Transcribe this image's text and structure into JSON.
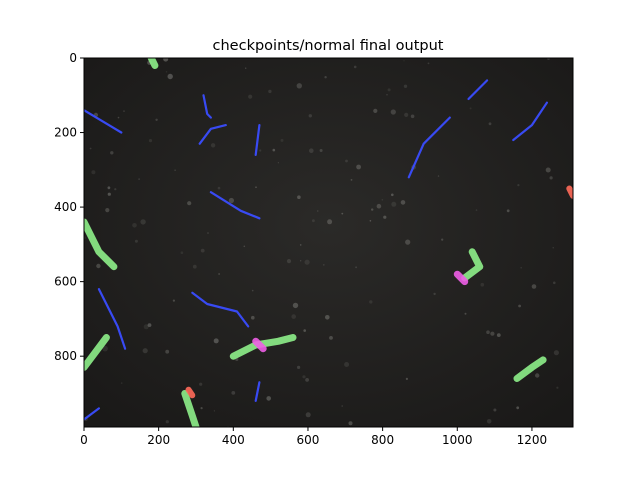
{
  "figure": {
    "title": "checkpoints/normal final output"
  },
  "chart_data": {
    "type": "image",
    "title": "checkpoints/normal final output",
    "xlabel": "",
    "ylabel": "",
    "xlim": [
      0,
      1310
    ],
    "ylim": [
      990,
      0
    ],
    "x_ticks": [
      0,
      200,
      400,
      600,
      800,
      1000,
      1200
    ],
    "y_ticks": [
      0,
      200,
      400,
      600,
      800
    ],
    "grid": false,
    "image_content": "dark microscopy field with worm-like specimens; detections highlighted in blue, green, magenta and red",
    "overlay_colors": {
      "blue": "#3a4dff",
      "green": "#8ef08a",
      "magenta": "#ee5ee6",
      "red": "#ff6a5a"
    },
    "detections": [
      {
        "class": "green",
        "points": [
          [
            180,
            0
          ],
          [
            190,
            20
          ]
        ]
      },
      {
        "class": "green",
        "points": [
          [
            0,
            440
          ],
          [
            40,
            520
          ],
          [
            80,
            560
          ]
        ]
      },
      {
        "class": "green",
        "points": [
          [
            0,
            830
          ],
          [
            30,
            790
          ],
          [
            60,
            750
          ]
        ]
      },
      {
        "class": "green",
        "points": [
          [
            270,
            900
          ],
          [
            290,
            960
          ],
          [
            300,
            990
          ]
        ]
      },
      {
        "class": "green",
        "points": [
          [
            400,
            800
          ],
          [
            460,
            770
          ],
          [
            520,
            760
          ],
          [
            560,
            750
          ]
        ]
      },
      {
        "class": "green",
        "points": [
          [
            1040,
            520
          ],
          [
            1060,
            560
          ],
          [
            1020,
            590
          ]
        ]
      },
      {
        "class": "green",
        "points": [
          [
            1160,
            860
          ],
          [
            1200,
            830
          ],
          [
            1230,
            810
          ]
        ]
      },
      {
        "class": "magenta",
        "points": [
          [
            460,
            760
          ],
          [
            480,
            780
          ]
        ]
      },
      {
        "class": "magenta",
        "points": [
          [
            1000,
            580
          ],
          [
            1020,
            600
          ]
        ]
      },
      {
        "class": "red",
        "points": [
          [
            1300,
            350
          ],
          [
            1310,
            370
          ]
        ]
      },
      {
        "class": "red",
        "points": [
          [
            280,
            890
          ],
          [
            290,
            905
          ]
        ]
      },
      {
        "class": "blue",
        "points": [
          [
            0,
            140
          ],
          [
            100,
            200
          ]
        ]
      },
      {
        "class": "blue",
        "points": [
          [
            320,
            100
          ],
          [
            330,
            150
          ],
          [
            340,
            160
          ]
        ]
      },
      {
        "class": "blue",
        "points": [
          [
            310,
            230
          ],
          [
            340,
            190
          ],
          [
            380,
            180
          ]
        ]
      },
      {
        "class": "blue",
        "points": [
          [
            470,
            180
          ],
          [
            460,
            260
          ]
        ]
      },
      {
        "class": "blue",
        "points": [
          [
            340,
            360
          ],
          [
            420,
            410
          ],
          [
            470,
            430
          ]
        ]
      },
      {
        "class": "blue",
        "points": [
          [
            870,
            320
          ],
          [
            910,
            230
          ],
          [
            980,
            160
          ]
        ]
      },
      {
        "class": "blue",
        "points": [
          [
            1030,
            110
          ],
          [
            1080,
            60
          ]
        ]
      },
      {
        "class": "blue",
        "points": [
          [
            1150,
            220
          ],
          [
            1200,
            180
          ],
          [
            1240,
            120
          ]
        ]
      },
      {
        "class": "blue",
        "points": [
          [
            40,
            620
          ],
          [
            90,
            720
          ],
          [
            110,
            780
          ]
        ]
      },
      {
        "class": "blue",
        "points": [
          [
            290,
            630
          ],
          [
            330,
            660
          ],
          [
            410,
            680
          ],
          [
            440,
            720
          ]
        ]
      },
      {
        "class": "blue",
        "points": [
          [
            470,
            870
          ],
          [
            460,
            920
          ]
        ]
      },
      {
        "class": "blue",
        "points": [
          [
            0,
            970
          ],
          [
            40,
            940
          ]
        ]
      }
    ]
  }
}
